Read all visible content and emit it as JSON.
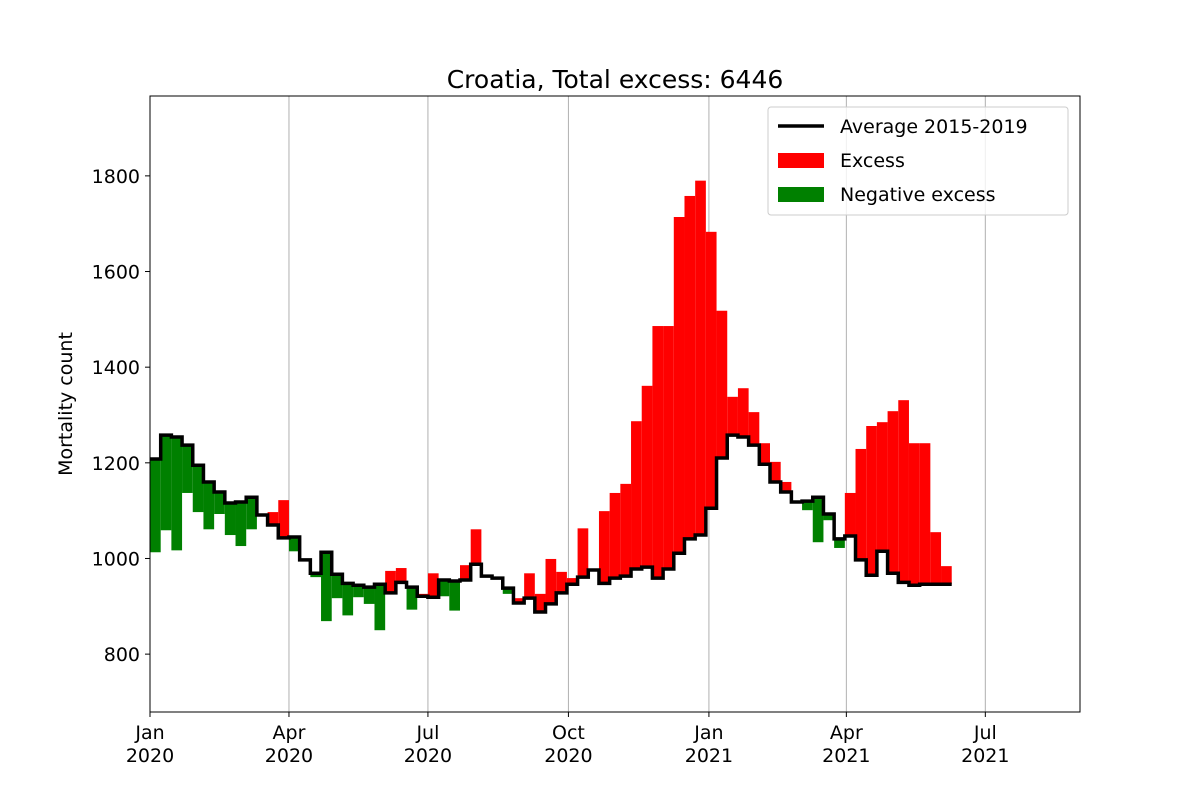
{
  "chart_data": {
    "type": "step-excess",
    "title": "Croatia, Total excess: 6446",
    "ylabel": "Mortality count",
    "xlim": [
      "2020-01-01",
      "2021-09-01"
    ],
    "xticks": [
      {
        "value": "2020-01-01",
        "label": "Jan 2020"
      },
      {
        "value": "2020-04-01",
        "label": "Apr 2020"
      },
      {
        "value": "2020-07-01",
        "label": "Jul 2020"
      },
      {
        "value": "2020-10-01",
        "label": "Oct 2020"
      },
      {
        "value": "2021-01-01",
        "label": "Jan 2021"
      },
      {
        "value": "2021-04-01",
        "label": "Apr 2021"
      },
      {
        "value": "2021-07-01",
        "label": "Jul 2021"
      }
    ],
    "ylim": [
      679,
      1967
    ],
    "yticks": [
      800,
      1000,
      1200,
      1400,
      1600,
      1800
    ],
    "grid": "x",
    "legend": "upper right",
    "x": [
      "2020-01-01",
      "2020-01-08",
      "2020-01-15",
      "2020-01-22",
      "2020-01-29",
      "2020-02-05",
      "2020-02-12",
      "2020-02-19",
      "2020-02-26",
      "2020-03-04",
      "2020-03-11",
      "2020-03-18",
      "2020-03-25",
      "2020-04-01",
      "2020-04-08",
      "2020-04-15",
      "2020-04-22",
      "2020-04-29",
      "2020-05-06",
      "2020-05-13",
      "2020-05-20",
      "2020-05-27",
      "2020-06-03",
      "2020-06-10",
      "2020-06-17",
      "2020-06-24",
      "2020-07-01",
      "2020-07-08",
      "2020-07-15",
      "2020-07-22",
      "2020-07-29",
      "2020-08-05",
      "2020-08-12",
      "2020-08-19",
      "2020-08-26",
      "2020-09-02",
      "2020-09-09",
      "2020-09-16",
      "2020-09-23",
      "2020-09-30",
      "2020-10-07",
      "2020-10-14",
      "2020-10-21",
      "2020-10-28",
      "2020-11-04",
      "2020-11-11",
      "2020-11-18",
      "2020-11-25",
      "2020-12-02",
      "2020-12-09",
      "2020-12-16",
      "2020-12-23",
      "2020-12-30",
      "2021-01-06",
      "2021-01-13",
      "2021-01-20",
      "2021-01-27",
      "2021-02-03",
      "2021-02-10",
      "2021-02-17",
      "2021-02-24",
      "2021-03-03",
      "2021-03-10",
      "2021-03-17",
      "2021-03-24",
      "2021-03-31",
      "2021-04-07",
      "2021-04-14",
      "2021-04-21",
      "2021-04-28",
      "2021-05-05",
      "2021-05-12",
      "2021-05-19",
      "2021-05-26",
      "2021-06-02"
    ],
    "series": [
      {
        "name": "Average 2015-2019",
        "color": "#000000",
        "values": [
          1208,
          1258,
          1254,
          1237,
          1195,
          1160,
          1139,
          1116,
          1118,
          1128,
          1091,
          1070,
          1043,
          1045,
          997,
          969,
          1013,
          967,
          948,
          944,
          940,
          946,
          928,
          950,
          940,
          921,
          919,
          955,
          953,
          955,
          988,
          963,
          959,
          938,
          907,
          917,
          888,
          905,
          928,
          946,
          961,
          976,
          948,
          959,
          963,
          978,
          982,
          959,
          978,
          1011,
          1041,
          1049,
          1105,
          1210,
          1258,
          1254,
          1237,
          1197,
          1160,
          1139,
          1118,
          1120,
          1128,
          1093,
          1041,
          1047,
          997,
          965,
          1015,
          969,
          950,
          944,
          946,
          946,
          946
        ]
      }
    ],
    "observed": {
      "values": [
        1013,
        1059,
        1017,
        1137,
        1097,
        1061,
        1093,
        1049,
        1026,
        1061,
        1089,
        1097,
        1122,
        1015,
        997,
        961,
        869,
        917,
        881,
        919,
        905,
        850,
        974,
        980,
        893,
        926,
        969,
        921,
        891,
        986,
        1061,
        961,
        961,
        926,
        917,
        969,
        926,
        999,
        972,
        959,
        1063,
        976,
        1099,
        1137,
        1156,
        1287,
        1361,
        1486,
        1486,
        1714,
        1758,
        1790,
        1683,
        1518,
        1338,
        1356,
        1306,
        1241,
        1202,
        1160,
        1118,
        1101,
        1034,
        1080,
        1022,
        1137,
        1229,
        1277,
        1285,
        1308,
        1331,
        1241,
        1241,
        1055,
        984
      ],
      "above": {
        "name": "Excess",
        "color": "#ff0000"
      },
      "below": {
        "name": "Negative excess",
        "color": "#008000"
      }
    }
  }
}
